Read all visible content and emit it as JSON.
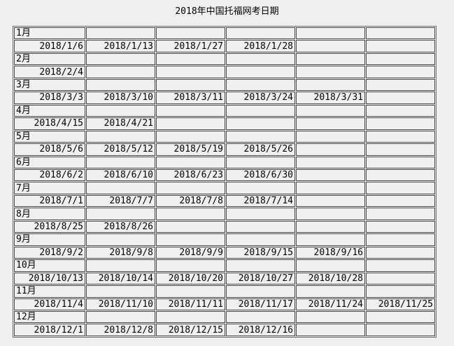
{
  "title": "2018年中国托福网考日期",
  "colors": {
    "page_background": "#efefef",
    "cell_background": "#efefef",
    "cell_border": "#4a4a4a",
    "outer_border": "#6e6e6e",
    "text": "#000000"
  },
  "table": {
    "columns": 6,
    "months": [
      {
        "label": "1月",
        "dates": [
          "2018/1/6",
          "2018/1/13",
          "2018/1/27",
          "2018/1/28"
        ]
      },
      {
        "label": "2月",
        "dates": [
          "2018/2/4"
        ]
      },
      {
        "label": "3月",
        "dates": [
          "2018/3/3",
          "2018/3/10",
          "2018/3/11",
          "2018/3/24",
          "2018/3/31"
        ]
      },
      {
        "label": "4月",
        "dates": [
          "2018/4/15",
          "2018/4/21"
        ]
      },
      {
        "label": "5月",
        "dates": [
          "2018/5/6",
          "2018/5/12",
          "2018/5/19",
          "2018/5/26"
        ]
      },
      {
        "label": "6月",
        "dates": [
          "2018/6/2",
          "2018/6/10",
          "2018/6/23",
          "2018/6/30"
        ]
      },
      {
        "label": "7月",
        "dates": [
          "2018/7/1",
          "2018/7/7",
          "2018/7/8",
          "2018/7/14"
        ]
      },
      {
        "label": "8月",
        "dates": [
          "2018/8/25",
          "2018/8/26"
        ]
      },
      {
        "label": "9月",
        "dates": [
          "2018/9/2",
          "2018/9/8",
          "2018/9/9",
          "2018/9/15",
          "2018/9/16"
        ]
      },
      {
        "label": "10月",
        "dates": [
          "2018/10/13",
          "2018/10/14",
          "2018/10/20",
          "2018/10/27",
          "2018/10/28"
        ]
      },
      {
        "label": "11月",
        "dates": [
          "2018/11/4",
          "2018/11/10",
          "2018/11/11",
          "2018/11/17",
          "2018/11/24",
          "2018/11/25"
        ]
      },
      {
        "label": "12月",
        "dates": [
          "2018/12/1",
          "2018/12/8",
          "2018/12/15",
          "2018/12/16"
        ]
      }
    ]
  }
}
